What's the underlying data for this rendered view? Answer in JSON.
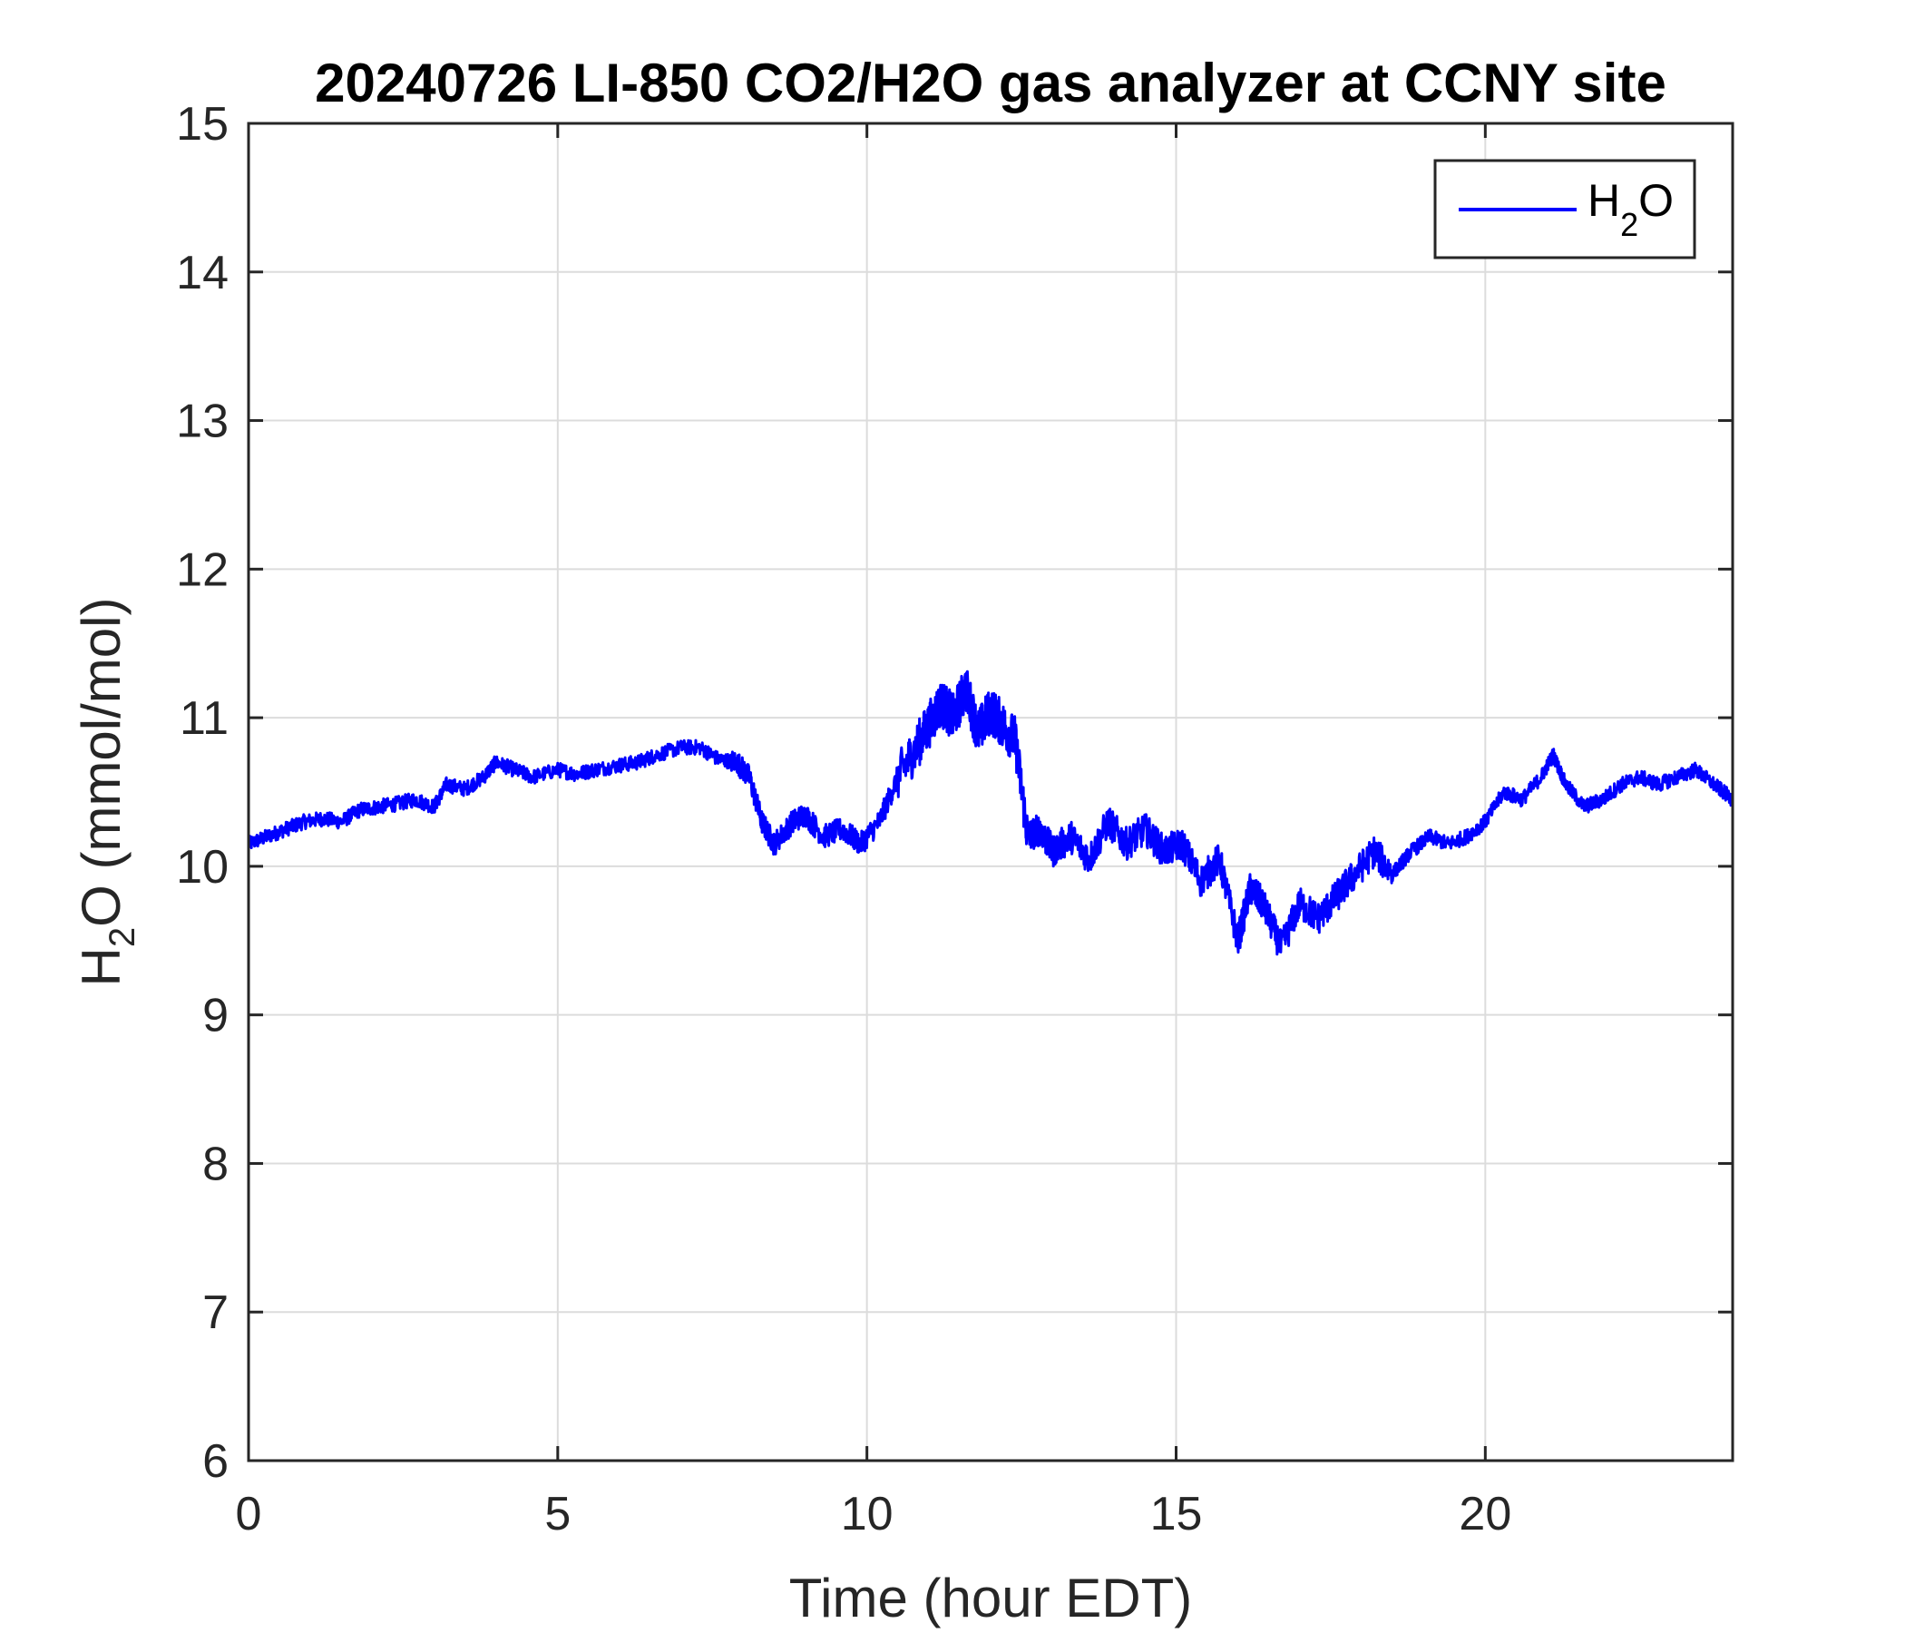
{
  "chart_data": {
    "type": "line",
    "title": "20240726 LI-850 CO2/H2O gas analyzer at CCNY site",
    "xlabel": "Time (hour EDT)",
    "ylabel": "H2O (mmol/mol)",
    "ylabel_parts": {
      "pre": "H",
      "sub": "2",
      "post": "O (mmol/mol)"
    },
    "xlim": [
      0,
      24
    ],
    "ylim": [
      6,
      15
    ],
    "xticks": [
      0,
      5,
      10,
      15,
      20
    ],
    "yticks": [
      6,
      7,
      8,
      9,
      10,
      11,
      12,
      13,
      14,
      15
    ],
    "grid": true,
    "legend_position": "top-right",
    "colors": {
      "series": "#0000ff",
      "axes": "#262626",
      "grid": "#dcdcdc"
    },
    "series": [
      {
        "name": "H2O",
        "legend_parts": {
          "pre": "H",
          "sub": "2",
          "post": "O"
        },
        "color": "#0000ff",
        "x": [
          0.0,
          0.3,
          0.6,
          0.9,
          1.2,
          1.5,
          1.8,
          2.1,
          2.4,
          2.7,
          3.0,
          3.2,
          3.5,
          3.8,
          4.0,
          4.3,
          4.6,
          5.0,
          5.3,
          5.6,
          6.0,
          6.3,
          6.6,
          7.0,
          7.3,
          7.6,
          7.9,
          8.1,
          8.3,
          8.5,
          8.8,
          9.0,
          9.3,
          9.6,
          9.9,
          10.2,
          10.5,
          10.8,
          11.0,
          11.2,
          11.4,
          11.6,
          11.8,
          12.0,
          12.2,
          12.4,
          12.6,
          12.8,
          13.0,
          13.3,
          13.6,
          13.9,
          14.2,
          14.5,
          14.8,
          15.1,
          15.4,
          15.7,
          16.0,
          16.2,
          16.4,
          16.7,
          17.0,
          17.3,
          17.6,
          17.9,
          18.2,
          18.5,
          18.8,
          19.1,
          19.4,
          19.7,
          20.0,
          20.3,
          20.6,
          20.9,
          21.1,
          21.3,
          21.6,
          21.9,
          22.2,
          22.5,
          22.8,
          23.1,
          23.4,
          23.7,
          24.0
        ],
        "y": [
          10.15,
          10.2,
          10.25,
          10.3,
          10.32,
          10.3,
          10.38,
          10.4,
          10.42,
          10.45,
          10.4,
          10.55,
          10.52,
          10.6,
          10.7,
          10.65,
          10.6,
          10.65,
          10.62,
          10.65,
          10.68,
          10.7,
          10.75,
          10.8,
          10.8,
          10.72,
          10.7,
          10.6,
          10.3,
          10.15,
          10.3,
          10.35,
          10.2,
          10.25,
          10.15,
          10.3,
          10.6,
          10.8,
          10.95,
          11.1,
          11.0,
          11.2,
          10.9,
          11.05,
          10.95,
          10.85,
          10.2,
          10.25,
          10.1,
          10.2,
          10.05,
          10.3,
          10.15,
          10.25,
          10.1,
          10.15,
          9.9,
          10.05,
          9.5,
          9.85,
          9.75,
          9.45,
          9.75,
          9.65,
          9.8,
          9.95,
          10.1,
          9.95,
          10.1,
          10.2,
          10.15,
          10.2,
          10.3,
          10.5,
          10.45,
          10.6,
          10.75,
          10.55,
          10.4,
          10.45,
          10.55,
          10.6,
          10.55,
          10.6,
          10.65,
          10.55,
          10.45
        ]
      }
    ]
  }
}
